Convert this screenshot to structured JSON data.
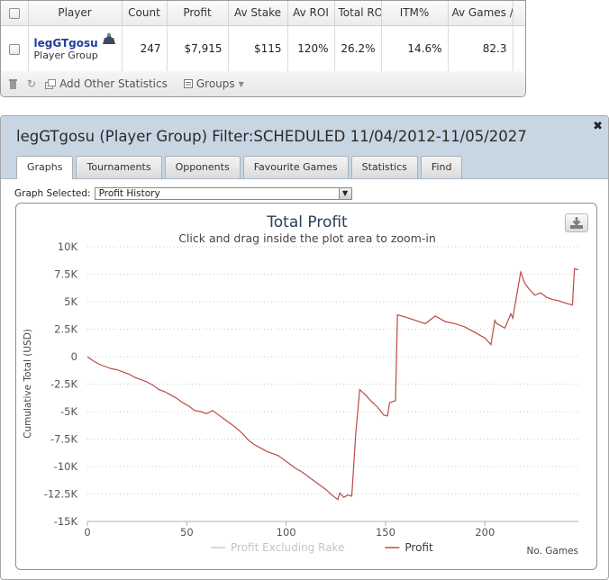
{
  "stats_table": {
    "headers": [
      "Player",
      "Count",
      "Profit",
      "Av Stake",
      "Av ROI",
      "Total ROI",
      "ITM%",
      "Av Games /"
    ],
    "row": {
      "player_name": "legGTgosu",
      "player_sub": "Player Group",
      "count": "247",
      "profit": "$7,915",
      "av_stake": "$115",
      "av_roi": "120%",
      "total_roi": "26.2%",
      "itm": "14.6%",
      "av_games": "82.3"
    }
  },
  "toolbar": {
    "add_stats_label": "Add Other Statistics",
    "groups_label": "Groups"
  },
  "window": {
    "title": "legGTgosu (Player Group) Filter:SCHEDULED 11/04/2012-11/05/2027",
    "tabs": [
      "Graphs",
      "Tournaments",
      "Opponents",
      "Favourite Games",
      "Statistics",
      "Find"
    ],
    "active_tab": "Graphs"
  },
  "graph_selector": {
    "label": "Graph Selected:",
    "value": "Profit History"
  },
  "chart_data": {
    "type": "line",
    "title": "Total Profit",
    "subtitle": "Click and drag inside the plot area to zoom-in",
    "xlabel": "No. Games",
    "ylabel": "Cumulative Total (USD)",
    "xlim": [
      0,
      247
    ],
    "ylim": [
      -15000,
      10000
    ],
    "x_ticks": [
      0,
      50,
      100,
      150,
      200
    ],
    "y_ticks": [
      10000,
      7500,
      5000,
      2500,
      0,
      -2500,
      -5000,
      -7500,
      -10000,
      -12500,
      -15000
    ],
    "y_tick_labels": [
      "10K",
      "7.5K",
      "5K",
      "2.5K",
      "0",
      "-2.5K",
      "-5K",
      "-7.5K",
      "-10K",
      "-12.5K",
      "-15K"
    ],
    "x_tick_labels": [
      "0",
      "50",
      "100",
      "150",
      "200"
    ],
    "grid": "horizontal dotted",
    "legend_position": "bottom-center",
    "series": [
      {
        "name": "Profit Excluding Rake",
        "color": "#cccccc",
        "visible": false,
        "x": [],
        "y": []
      },
      {
        "name": "Profit",
        "color": "#b94a48",
        "x": [
          0,
          3,
          6,
          9,
          12,
          15,
          18,
          21,
          24,
          27,
          30,
          33,
          36,
          39,
          42,
          45,
          48,
          51,
          54,
          57,
          60,
          63,
          66,
          69,
          72,
          75,
          78,
          81,
          84,
          87,
          90,
          93,
          96,
          99,
          102,
          105,
          108,
          111,
          114,
          117,
          120,
          123,
          126,
          127,
          129,
          131,
          133,
          134,
          135,
          137,
          140,
          143,
          146,
          149,
          151,
          152,
          155,
          156,
          160,
          165,
          170,
          175,
          180,
          185,
          190,
          195,
          200,
          203,
          205,
          206,
          210,
          213,
          214,
          218,
          220,
          222,
          225,
          228,
          231,
          234,
          237,
          240,
          244,
          245,
          247
        ],
        "y": [
          0,
          -400,
          -700,
          -900,
          -1100,
          -1200,
          -1400,
          -1600,
          -1900,
          -2100,
          -2300,
          -2600,
          -3000,
          -3200,
          -3500,
          -3800,
          -4200,
          -4500,
          -4900,
          -5000,
          -5200,
          -4900,
          -5300,
          -5700,
          -6100,
          -6500,
          -7000,
          -7600,
          -8000,
          -8300,
          -8600,
          -8800,
          -9000,
          -9400,
          -9800,
          -10200,
          -10500,
          -10900,
          -11300,
          -11700,
          -12100,
          -12600,
          -13000,
          -12400,
          -12800,
          -12600,
          -12700,
          -9800,
          -7000,
          -3000,
          -3500,
          -4100,
          -4600,
          -5300,
          -5400,
          -4200,
          -4000,
          3800,
          3600,
          3300,
          3000,
          3700,
          3200,
          3000,
          2700,
          2200,
          1700,
          1100,
          3300,
          3000,
          2600,
          3900,
          3500,
          7700,
          6700,
          6200,
          5600,
          5800,
          5400,
          5200,
          5100,
          4900,
          4700,
          8000,
          7900
        ]
      }
    ]
  }
}
